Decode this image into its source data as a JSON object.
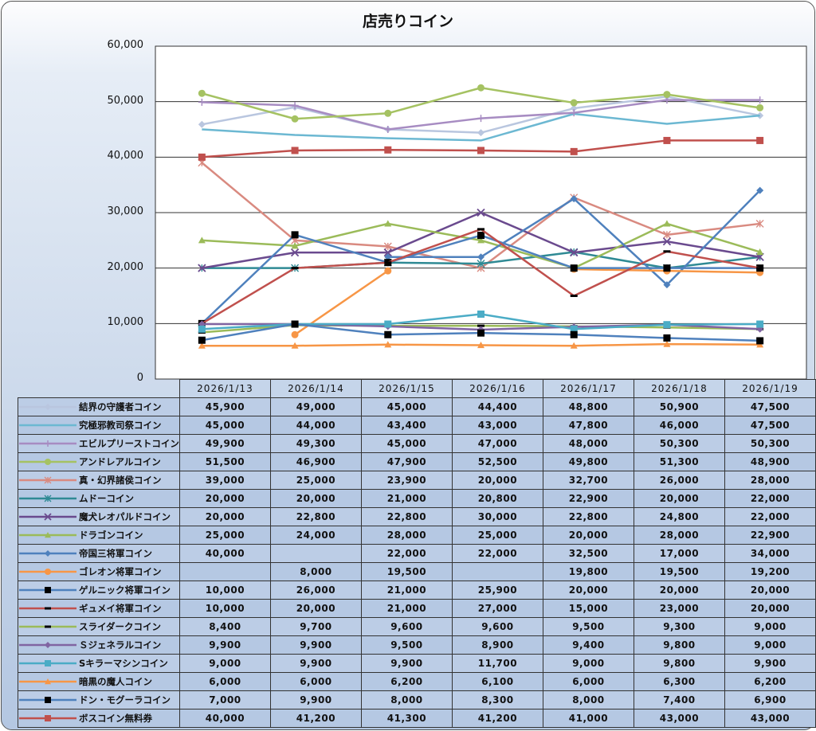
{
  "chart_data": {
    "type": "line",
    "title": "店売りコイン",
    "xlabel": "",
    "ylabel": "",
    "ylim": [
      0,
      60000
    ],
    "yticks": [
      "0",
      "10,000",
      "20,000",
      "30,000",
      "40,000",
      "50,000",
      "60,000"
    ],
    "ytick_values": [
      0,
      10000,
      20000,
      30000,
      40000,
      50000,
      60000
    ],
    "grid": true,
    "legend": "table-bottom",
    "categories": [
      "2026/1/13",
      "2026/1/14",
      "2026/1/15",
      "2026/1/16",
      "2026/1/17",
      "2026/1/18",
      "2026/1/19"
    ],
    "series": [
      {
        "name": "結界の守護者コイン",
        "color": "#b9c6df",
        "marker": "diamond",
        "marker_color": "#b9c6df",
        "values": [
          45900,
          49000,
          45000,
          44400,
          48800,
          50900,
          47500
        ],
        "labels": [
          "45,900",
          "49,000",
          "45,000",
          "44,400",
          "48,800",
          "50,900",
          "47,500"
        ]
      },
      {
        "name": "究極邪教司祭コイン",
        "color": "#6cb8d2",
        "marker": "none",
        "marker_color": "#6cb8d2",
        "values": [
          45000,
          44000,
          43400,
          43000,
          47800,
          46000,
          47500
        ],
        "labels": [
          "45,000",
          "44,000",
          "43,400",
          "43,000",
          "47,800",
          "46,000",
          "47,500"
        ]
      },
      {
        "name": "エビルプリーストコイン",
        "color": "#a78cc2",
        "marker": "plus",
        "marker_color": "#a78cc2",
        "values": [
          49900,
          49300,
          45000,
          47000,
          48000,
          50300,
          50300
        ],
        "labels": [
          "49,900",
          "49,300",
          "45,000",
          "47,000",
          "48,000",
          "50,300",
          "50,300"
        ]
      },
      {
        "name": "アンドレアルコイン",
        "color": "#a5c262",
        "marker": "circle",
        "marker_color": "#a5c262",
        "values": [
          51500,
          46900,
          47900,
          52500,
          49800,
          51300,
          48900
        ],
        "labels": [
          "51,500",
          "46,900",
          "47,900",
          "52,500",
          "49,800",
          "51,300",
          "48,900"
        ]
      },
      {
        "name": "真・幻界諸侯コイン",
        "color": "#d98a80",
        "marker": "asterisk",
        "marker_color": "#d98a80",
        "values": [
          39000,
          25000,
          23900,
          20000,
          32700,
          26000,
          28000
        ],
        "labels": [
          "39,000",
          "25,000",
          "23,900",
          "20,000",
          "32,700",
          "26,000",
          "28,000"
        ]
      },
      {
        "name": "ムドーコイン",
        "color": "#2f8a94",
        "marker": "asterisk",
        "marker_color": "#2f8a94",
        "values": [
          20000,
          20000,
          21000,
          20800,
          22900,
          20000,
          22000
        ],
        "labels": [
          "20,000",
          "20,000",
          "21,000",
          "20,800",
          "22,900",
          "20,000",
          "22,000"
        ]
      },
      {
        "name": "魔犬レオパルドコイン",
        "color": "#6a4a8e",
        "marker": "x",
        "marker_color": "#6a4a8e",
        "values": [
          20000,
          22800,
          22800,
          30000,
          22800,
          24800,
          22000
        ],
        "labels": [
          "20,000",
          "22,800",
          "22,800",
          "30,000",
          "22,800",
          "24,800",
          "22,000"
        ]
      },
      {
        "name": "ドラゴンコイン",
        "color": "#9bbb59",
        "marker": "triangle",
        "marker_color": "#9bbb59",
        "values": [
          25000,
          24000,
          28000,
          25000,
          20000,
          28000,
          22900
        ],
        "labels": [
          "25,000",
          "24,000",
          "28,000",
          "25,000",
          "20,000",
          "28,000",
          "22,900"
        ]
      },
      {
        "name": "帝国三将軍コイン",
        "color": "#4f81bd",
        "marker": "diamond",
        "marker_color": "#4f81bd",
        "values": [
          40000,
          null,
          22000,
          22000,
          32500,
          17000,
          34000
        ],
        "labels": [
          "40,000",
          "",
          "22,000",
          "22,000",
          "32,500",
          "17,000",
          "34,000"
        ]
      },
      {
        "name": "ゴレオン将軍コイン",
        "color": "#f79646",
        "marker": "circle",
        "marker_color": "#f79646",
        "values": [
          null,
          8000,
          19500,
          null,
          19800,
          19500,
          19200
        ],
        "labels": [
          "",
          "8,000",
          "19,500",
          "",
          "19,800",
          "19,500",
          "19,200"
        ]
      },
      {
        "name": "ゲルニック将軍コイン",
        "color": "#4f81bd",
        "marker": "square",
        "marker_color": "#000000",
        "values": [
          10000,
          26000,
          21000,
          25900,
          20000,
          20000,
          20000
        ],
        "labels": [
          "10,000",
          "26,000",
          "21,000",
          "25,900",
          "20,000",
          "20,000",
          "20,000"
        ]
      },
      {
        "name": "ギュメイ将軍コイン",
        "color": "#c0504d",
        "marker": "dash",
        "marker_color": "#000000",
        "values": [
          10000,
          20000,
          21000,
          27000,
          15000,
          23000,
          20000
        ],
        "labels": [
          "10,000",
          "20,000",
          "21,000",
          "27,000",
          "15,000",
          "23,000",
          "20,000"
        ]
      },
      {
        "name": "スライダークコイン",
        "color": "#9bbb59",
        "marker": "dash",
        "marker_color": "#000000",
        "values": [
          8400,
          9700,
          9600,
          9600,
          9500,
          9300,
          9000
        ],
        "labels": [
          "8,400",
          "9,700",
          "9,600",
          "9,600",
          "9,500",
          "9,300",
          "9,000"
        ]
      },
      {
        "name": "Ｓジェネラルコイン",
        "color": "#8064a2",
        "marker": "diamond",
        "marker_color": "#8064a2",
        "values": [
          9900,
          9900,
          9500,
          8900,
          9400,
          9800,
          9000
        ],
        "labels": [
          "9,900",
          "9,900",
          "9,500",
          "8,900",
          "9,400",
          "9,800",
          "9,000"
        ]
      },
      {
        "name": "Sキラーマシンコイン",
        "color": "#4bacc6",
        "marker": "square",
        "marker_color": "#4bacc6",
        "values": [
          9000,
          9900,
          9900,
          11700,
          9000,
          9800,
          9900
        ],
        "labels": [
          "9,000",
          "9,900",
          "9,900",
          "11,700",
          "9,000",
          "9,800",
          "9,900"
        ]
      },
      {
        "name": "暗黒の魔人コイン",
        "color": "#f79646",
        "marker": "triangle",
        "marker_color": "#f79646",
        "values": [
          6000,
          6000,
          6200,
          6100,
          6000,
          6300,
          6200
        ],
        "labels": [
          "6,000",
          "6,000",
          "6,200",
          "6,100",
          "6,000",
          "6,300",
          "6,200"
        ]
      },
      {
        "name": "ドン・モグーラコイン",
        "color": "#4f81bd",
        "marker": "square",
        "marker_color": "#000000",
        "values": [
          7000,
          9900,
          8000,
          8300,
          8000,
          7400,
          6900
        ],
        "labels": [
          "7,000",
          "9,900",
          "8,000",
          "8,300",
          "8,000",
          "7,400",
          "6,900"
        ]
      },
      {
        "name": "ボスコイン無料券",
        "color": "#c0504d",
        "marker": "square",
        "marker_color": "#c0504d",
        "values": [
          40000,
          41200,
          41300,
          41200,
          41000,
          43000,
          43000
        ],
        "labels": [
          "40,000",
          "41,200",
          "41,300",
          "41,200",
          "41,000",
          "43,000",
          "43,000"
        ]
      }
    ]
  }
}
